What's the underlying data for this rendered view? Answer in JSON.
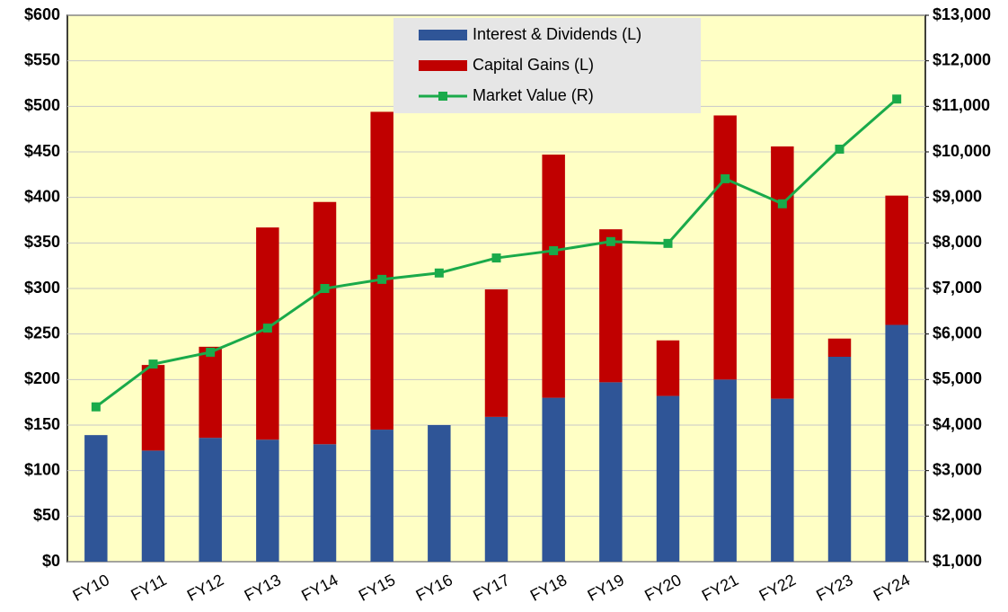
{
  "chart_data": {
    "type": "bar",
    "categories": [
      "FY10",
      "FY11",
      "FY12",
      "FY13",
      "FY14",
      "FY15",
      "FY16",
      "FY17",
      "FY18",
      "FY19",
      "FY20",
      "FY21",
      "FY22",
      "FY23",
      "FY24"
    ],
    "series": [
      {
        "name": "Interest & Dividends (L)",
        "color": "#2f5597",
        "type": "bar",
        "values": [
          139,
          122,
          136,
          134,
          129,
          145,
          150,
          159,
          180,
          197,
          182,
          200,
          179,
          225,
          260
        ]
      },
      {
        "name": "Capital Gains (L)",
        "color": "#c00000",
        "type": "bar",
        "values": [
          0,
          94,
          100,
          233,
          266,
          349,
          0,
          140,
          267,
          168,
          61,
          290,
          277,
          20,
          142
        ]
      },
      {
        "name": "Market Value (R)",
        "color": "#1aaa4a",
        "type": "line",
        "axis": "y2",
        "values": [
          4400,
          5340,
          5600,
          6130,
          7000,
          7200,
          7340,
          7670,
          7830,
          8030,
          7990,
          9410,
          8860,
          10060,
          11160
        ]
      }
    ],
    "stacked": true,
    "ylim": [
      0,
      600
    ],
    "yticks": [
      {
        "value": 0,
        "label": "$0"
      },
      {
        "value": 50,
        "label": "$50"
      },
      {
        "value": 100,
        "label": "$100"
      },
      {
        "value": 150,
        "label": "$150"
      },
      {
        "value": 200,
        "label": "$200"
      },
      {
        "value": 250,
        "label": "$250"
      },
      {
        "value": 300,
        "label": "$300"
      },
      {
        "value": 350,
        "label": "$350"
      },
      {
        "value": 400,
        "label": "$400"
      },
      {
        "value": 450,
        "label": "$450"
      },
      {
        "value": 500,
        "label": "$500"
      },
      {
        "value": 550,
        "label": "$550"
      },
      {
        "value": 600,
        "label": "$600"
      }
    ],
    "y2lim": [
      1000,
      13000
    ],
    "y2ticks": [
      {
        "value": 1000,
        "label": "$1,000"
      },
      {
        "value": 2000,
        "label": "$2,000"
      },
      {
        "value": 3000,
        "label": "$3,000"
      },
      {
        "value": 4000,
        "label": "$4,000"
      },
      {
        "value": 5000,
        "label": "$5,000"
      },
      {
        "value": 6000,
        "label": "$6,000"
      },
      {
        "value": 7000,
        "label": "$7,000"
      },
      {
        "value": 8000,
        "label": "$8,000"
      },
      {
        "value": 9000,
        "label": "$9,000"
      },
      {
        "value": 10000,
        "label": "$10,000"
      },
      {
        "value": 11000,
        "label": "$11,000"
      },
      {
        "value": 12000,
        "label": "$12,000"
      },
      {
        "value": 13000,
        "label": "$13,000"
      }
    ],
    "grid": true,
    "legend": "top"
  }
}
